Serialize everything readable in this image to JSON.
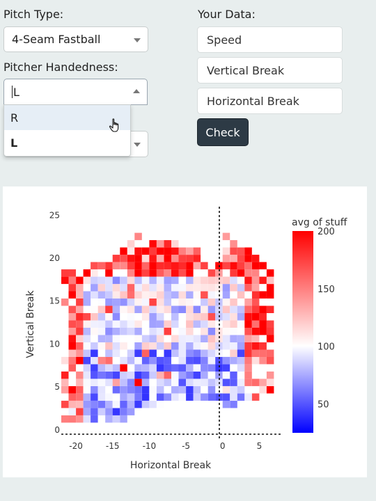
{
  "form": {
    "pitch_type_label": "Pitch Type:",
    "pitch_type_value": "4-Seam Fastball",
    "handedness_label": "Pitcher Handedness:",
    "handedness_value": "L",
    "handedness_options": [
      "R",
      "L"
    ]
  },
  "your_data": {
    "label": "Your Data:",
    "speed_placeholder": "Speed",
    "vertical_placeholder": "Vertical Break",
    "horizontal_placeholder": "Horizontal Break",
    "check_label": "Check"
  },
  "chart_data": {
    "type": "heatmap",
    "title": "",
    "xlabel": "Horizontal Break",
    "ylabel": "Vertical Break",
    "xlim": [
      -22,
      8
    ],
    "ylim": [
      -0.5,
      26
    ],
    "x_ticks": [
      "-20",
      "-15",
      "-10",
      "-5",
      "0",
      "5"
    ],
    "y_ticks": [
      "0",
      "5",
      "10",
      "15",
      "20",
      "25"
    ],
    "colorbar": {
      "title": "avg of stuff",
      "ticks": [
        "50",
        "100",
        "150",
        "200"
      ],
      "range": [
        25,
        200
      ],
      "colors": [
        "#0000ff",
        "#ffffff",
        "#ff0000"
      ]
    },
    "reference_lines": [
      "x = 0 (dotted)",
      "y = 0 (dotted)"
    ],
    "note": "2D histogram of average stuff value by horizontal and vertical break; dense bluish-white core between x -20..-3 and y 5..20, higher (red) values on the edges."
  }
}
